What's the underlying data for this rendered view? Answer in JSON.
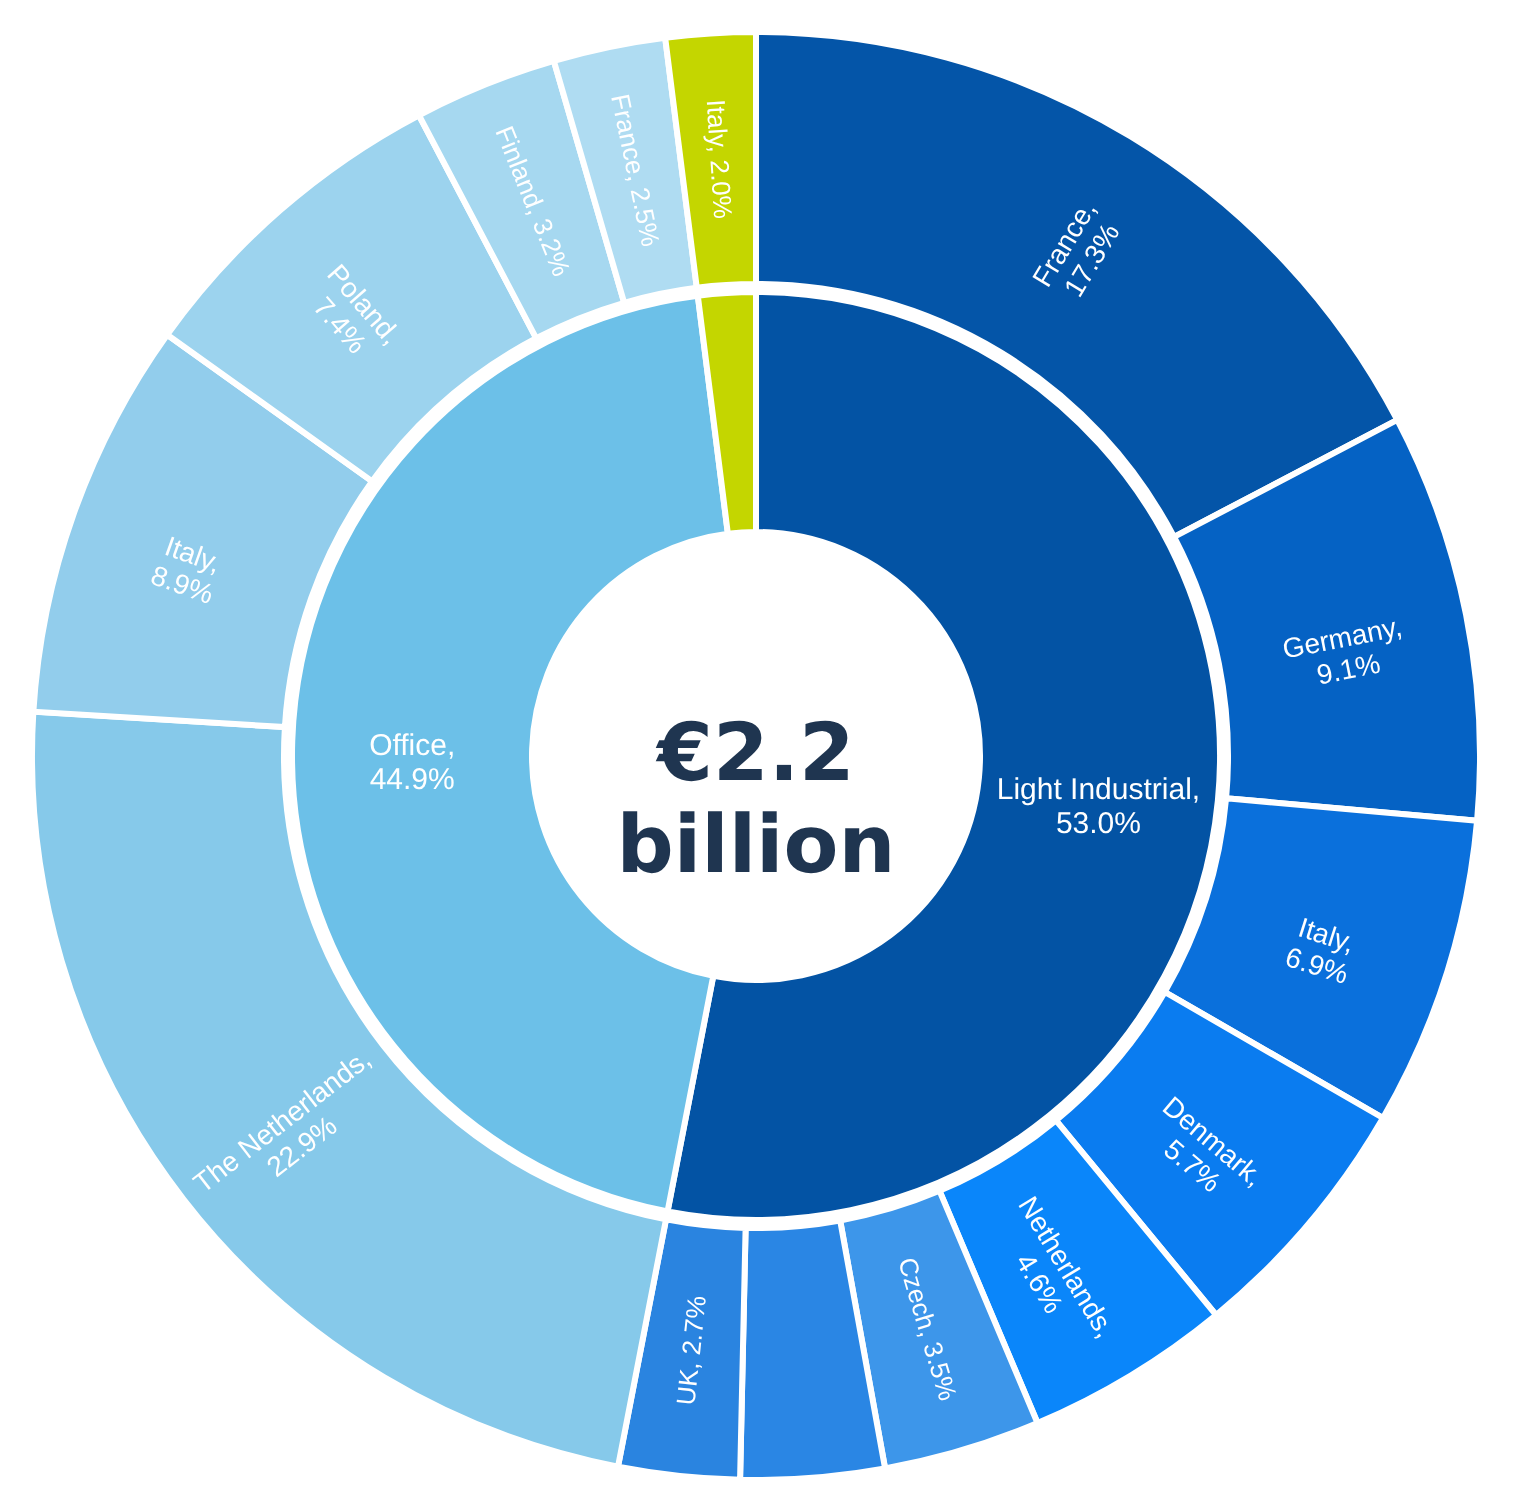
{
  "chart_data": {
    "type": "donut",
    "annotations": [
      "€2.2 billion"
    ],
    "series": [
      {
        "values": [
          53.0,
          44.9,
          2.0
        ],
        "value_labels": [
          "Light Industrial, 53.0%",
          "Office, 44.9%",
          null
        ],
        "colors": [
          "#0353a4",
          "#6cc0e8",
          "#c4d600"
        ]
      },
      {
        "values": [
          17.3,
          9.1,
          6.9,
          5.7,
          4.6,
          3.5,
          3.2,
          2.7,
          22.9,
          8.9,
          7.4,
          3.2,
          2.5,
          2.0
        ],
        "value_labels": [
          "France, 17.3%",
          "Germany, 9.1%",
          "Italy, 6.9%",
          "Denmark, 5.7%",
          "Netherlands, 4.6%",
          "Czech, 3.5%",
          null,
          "UK, 2.7%",
          "The Netherlands, 22.9%",
          "Italy, 8.9%",
          "Poland, 7.4%",
          "Finland, 3.2%",
          "France, 2.5%",
          "Italy, 2.0%"
        ],
        "colors": [
          "#0455a8",
          "#0562c4",
          "#0a70dc",
          "#0a7cf0",
          "#0a86fa",
          "#3d96ea",
          "#2a86e4",
          "#2a84e0",
          "#86c9ea",
          "#92cdec",
          "#9cd3ee",
          "#a6d8f0",
          "#afdcf2",
          "#c4d600"
        ]
      }
    ]
  }
}
